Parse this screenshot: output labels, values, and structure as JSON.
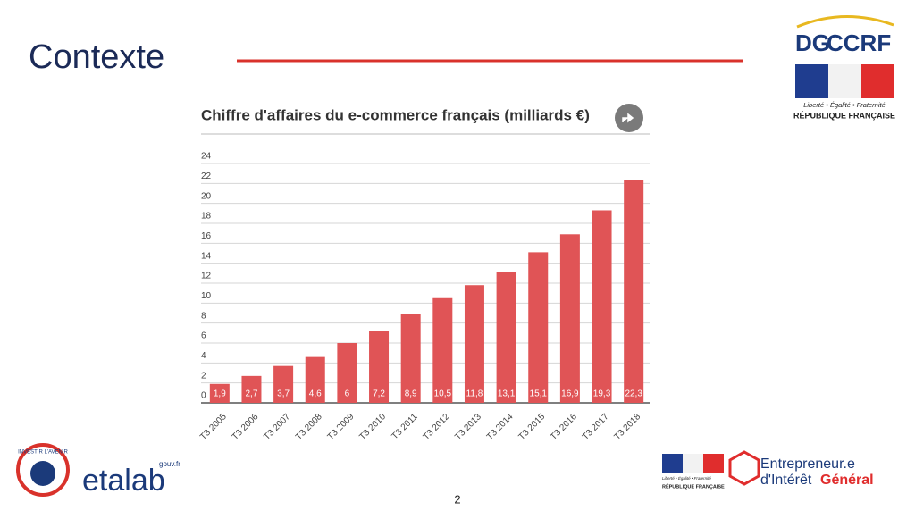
{
  "slide": {
    "title": "Contexte",
    "page_number": "2",
    "logo_top": {
      "dg": "DG",
      "ccrf": "CCRF",
      "motto": "Liberté • Égalité • Fraternité",
      "republic": "RÉPUBLIQUE FRANÇAISE"
    },
    "logo_investir": "INVESTIR L'AVENIR",
    "logo_etalab": {
      "name": "etalab",
      "domain": "gouv.fr"
    },
    "logo_bottom_right": {
      "motto": "Liberté • Égalité • Fraternité",
      "republic": "RÉPUBLIQUE FRANÇAISE",
      "line1": "Entrepreneur.e",
      "line2a": "d'Intérêt",
      "line2b": "Général"
    }
  },
  "chart_data": {
    "type": "bar",
    "title": "Chiffre d'affaires du e-commerce français (milliards €)",
    "categories": [
      "T3 2005",
      "T3 2006",
      "T3 2007",
      "T3 2008",
      "T3 2009",
      "T3 2010",
      "T3 2011",
      "T3 2012",
      "T3 2013",
      "T3 2014",
      "T3 2015",
      "T3 2016",
      "T3 2017",
      "T3 2018"
    ],
    "values": [
      1.9,
      2.7,
      3.7,
      4.6,
      6,
      7.2,
      8.9,
      10.5,
      11.8,
      13.1,
      15.1,
      16.9,
      19.3,
      22.3
    ],
    "value_labels": [
      "1,9",
      "2,7",
      "3,7",
      "4,6",
      "6",
      "7,2",
      "8,9",
      "10,5",
      "11,8",
      "13,1",
      "15,1",
      "16,9",
      "19,3",
      "22,3"
    ],
    "color": "#e05456",
    "ylim": [
      0,
      24
    ],
    "yticks": [
      0,
      2,
      4,
      6,
      8,
      10,
      12,
      14,
      16,
      18,
      20,
      22,
      24
    ],
    "grid": true
  }
}
